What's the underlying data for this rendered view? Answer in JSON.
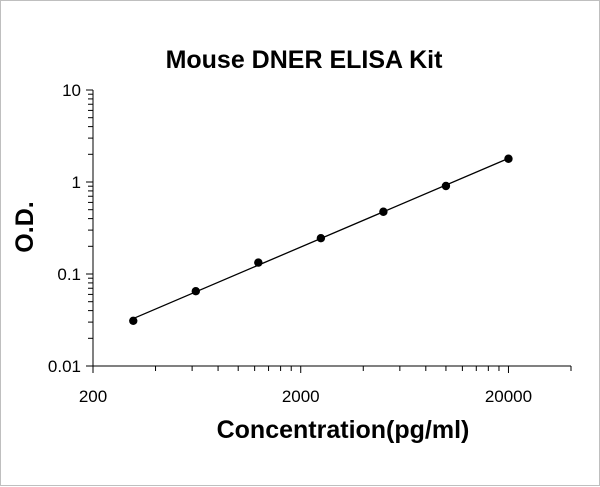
{
  "chart_data": {
    "type": "scatter",
    "title": "Mouse DNER ELISA Kit",
    "xlabel": "Concentration(pg/ml)",
    "ylabel": "O.D.",
    "x_scale": "log",
    "y_scale": "log",
    "xlim": [
      200,
      40000
    ],
    "ylim": [
      0.01,
      10
    ],
    "x_ticks": [
      {
        "value": 200,
        "label": "200"
      },
      {
        "value": 2000,
        "label": "2000"
      },
      {
        "value": 20000,
        "label": "20000"
      }
    ],
    "y_ticks": [
      {
        "value": 10,
        "label": "10"
      },
      {
        "value": 1,
        "label": "1"
      },
      {
        "value": 0.1,
        "label": "0.1"
      },
      {
        "value": 0.01,
        "label": "0.01"
      }
    ],
    "grid": false,
    "legend": "none",
    "series": [
      {
        "x": [
          312.5,
          625,
          1250,
          2500,
          5000,
          10000,
          20000
        ],
        "y": [
          0.031,
          0.065,
          0.133,
          0.245,
          0.475,
          0.905,
          1.79
        ],
        "marker": "circle",
        "trendline": "power",
        "color": "#000000"
      }
    ]
  }
}
